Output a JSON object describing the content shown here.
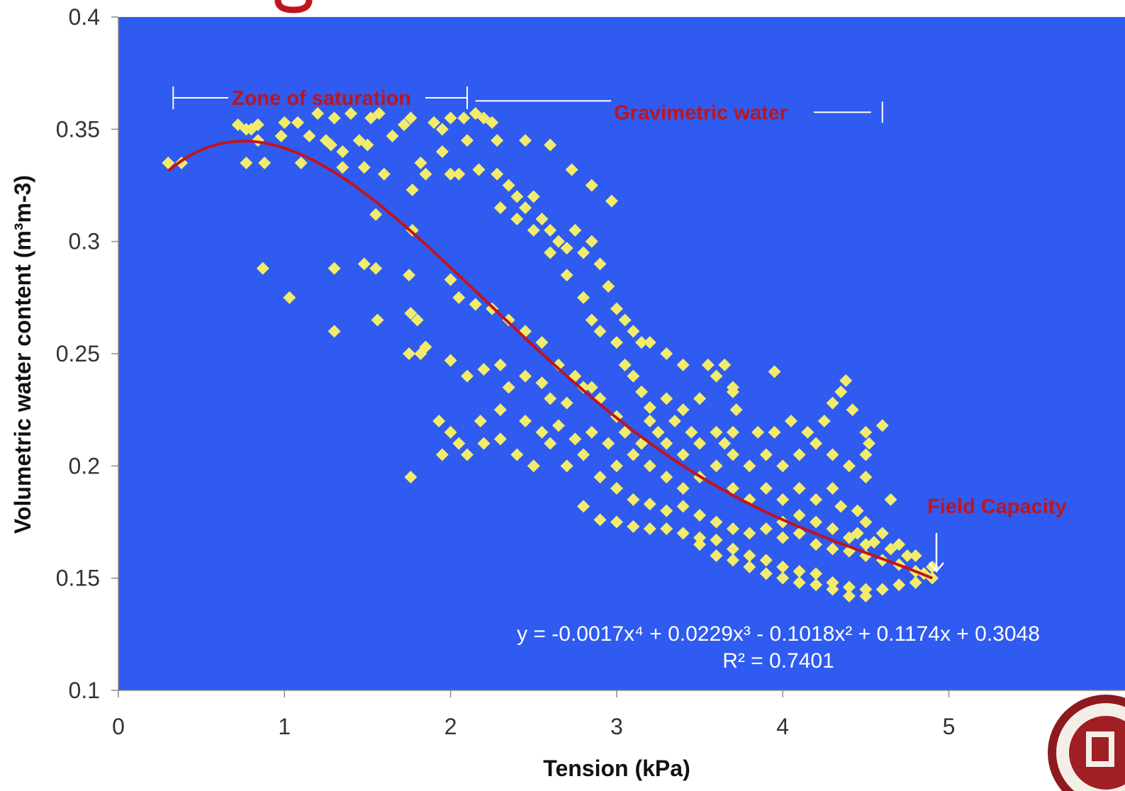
{
  "chart_data": {
    "type": "scatter",
    "title": "",
    "xlabel": "Tension (kPa)",
    "ylabel": "Volumetric water content   (m³m-3)",
    "xlim": [
      0,
      5.7
    ],
    "ylim": [
      0.1,
      0.4
    ],
    "x_ticks": [
      "0",
      "1",
      "2",
      "3",
      "4",
      "5"
    ],
    "y_ticks": [
      "0.1",
      "0.15",
      "0.2",
      "0.25",
      "0.3",
      "0.35",
      "0.4"
    ],
    "grid": false,
    "legend": "none",
    "background_color": "#2f5bf0",
    "marker_color": "#f2ec6a",
    "trendline_color": "#c0141c",
    "series": [
      {
        "marker": "diamond",
        "points": [
          [
            0.3,
            0.335
          ],
          [
            0.38,
            0.335
          ],
          [
            0.72,
            0.352
          ],
          [
            0.77,
            0.35
          ],
          [
            0.8,
            0.35
          ],
          [
            0.84,
            0.352
          ],
          [
            0.84,
            0.345
          ],
          [
            0.77,
            0.335
          ],
          [
            0.88,
            0.335
          ],
          [
            0.98,
            0.347
          ],
          [
            1.0,
            0.353
          ],
          [
            1.08,
            0.353
          ],
          [
            1.15,
            0.347
          ],
          [
            1.2,
            0.357
          ],
          [
            1.25,
            0.345
          ],
          [
            1.28,
            0.343
          ],
          [
            1.3,
            0.355
          ],
          [
            1.35,
            0.34
          ],
          [
            1.4,
            0.357
          ],
          [
            1.45,
            0.345
          ],
          [
            1.5,
            0.343
          ],
          [
            1.52,
            0.355
          ],
          [
            1.57,
            0.357
          ],
          [
            1.6,
            0.33
          ],
          [
            1.65,
            0.347
          ],
          [
            1.72,
            0.352
          ],
          [
            1.76,
            0.355
          ],
          [
            1.9,
            0.353
          ],
          [
            1.95,
            0.35
          ],
          [
            2.0,
            0.355
          ],
          [
            2.08,
            0.355
          ],
          [
            2.15,
            0.357
          ],
          [
            2.2,
            0.355
          ],
          [
            2.25,
            0.353
          ],
          [
            2.1,
            0.345
          ],
          [
            2.05,
            0.33
          ],
          [
            1.95,
            0.34
          ],
          [
            1.82,
            0.335
          ],
          [
            1.85,
            0.33
          ],
          [
            2.0,
            0.33
          ],
          [
            2.17,
            0.332
          ],
          [
            2.28,
            0.345
          ],
          [
            2.45,
            0.345
          ],
          [
            2.6,
            0.343
          ],
          [
            2.73,
            0.332
          ],
          [
            2.85,
            0.325
          ],
          [
            2.97,
            0.318
          ],
          [
            1.1,
            0.335
          ],
          [
            1.35,
            0.333
          ],
          [
            1.48,
            0.333
          ],
          [
            0.87,
            0.288
          ],
          [
            1.03,
            0.275
          ],
          [
            1.3,
            0.288
          ],
          [
            1.3,
            0.26
          ],
          [
            1.48,
            0.29
          ],
          [
            1.55,
            0.288
          ],
          [
            1.56,
            0.265
          ],
          [
            1.75,
            0.285
          ],
          [
            1.76,
            0.268
          ],
          [
            1.8,
            0.265
          ],
          [
            1.75,
            0.25
          ],
          [
            1.82,
            0.25
          ],
          [
            1.85,
            0.253
          ],
          [
            1.77,
            0.323
          ],
          [
            1.77,
            0.305
          ],
          [
            1.55,
            0.312
          ],
          [
            1.76,
            0.195
          ],
          [
            2.28,
            0.33
          ],
          [
            2.35,
            0.325
          ],
          [
            2.4,
            0.32
          ],
          [
            2.45,
            0.315
          ],
          [
            2.5,
            0.32
          ],
          [
            2.55,
            0.31
          ],
          [
            2.6,
            0.305
          ],
          [
            2.65,
            0.3
          ],
          [
            2.7,
            0.297
          ],
          [
            2.75,
            0.305
          ],
          [
            2.8,
            0.295
          ],
          [
            2.85,
            0.3
          ],
          [
            2.9,
            0.29
          ],
          [
            2.95,
            0.28
          ],
          [
            3.0,
            0.27
          ],
          [
            3.05,
            0.265
          ],
          [
            3.1,
            0.26
          ],
          [
            3.15,
            0.255
          ],
          [
            3.2,
            0.255
          ],
          [
            3.3,
            0.25
          ],
          [
            3.4,
            0.245
          ],
          [
            3.55,
            0.245
          ],
          [
            3.6,
            0.24
          ],
          [
            3.7,
            0.233
          ],
          [
            2.3,
            0.315
          ],
          [
            2.4,
            0.31
          ],
          [
            2.5,
            0.305
          ],
          [
            2.6,
            0.295
          ],
          [
            2.7,
            0.285
          ],
          [
            2.8,
            0.275
          ],
          [
            2.85,
            0.265
          ],
          [
            2.9,
            0.26
          ],
          [
            3.0,
            0.255
          ],
          [
            3.05,
            0.245
          ],
          [
            3.1,
            0.24
          ],
          [
            3.15,
            0.233
          ],
          [
            3.2,
            0.226
          ],
          [
            2.0,
            0.283
          ],
          [
            2.05,
            0.275
          ],
          [
            2.15,
            0.272
          ],
          [
            2.25,
            0.27
          ],
          [
            2.35,
            0.265
          ],
          [
            2.45,
            0.26
          ],
          [
            2.55,
            0.255
          ],
          [
            2.65,
            0.245
          ],
          [
            2.75,
            0.24
          ],
          [
            2.85,
            0.235
          ],
          [
            2.0,
            0.247
          ],
          [
            2.1,
            0.24
          ],
          [
            2.2,
            0.243
          ],
          [
            2.3,
            0.245
          ],
          [
            2.35,
            0.235
          ],
          [
            2.45,
            0.24
          ],
          [
            2.55,
            0.237
          ],
          [
            2.6,
            0.23
          ],
          [
            2.7,
            0.228
          ],
          [
            2.8,
            0.235
          ],
          [
            2.9,
            0.23
          ],
          [
            3.0,
            0.222
          ],
          [
            3.05,
            0.215
          ],
          [
            1.93,
            0.22
          ],
          [
            2.0,
            0.215
          ],
          [
            2.05,
            0.21
          ],
          [
            1.95,
            0.205
          ],
          [
            2.1,
            0.205
          ],
          [
            2.2,
            0.21
          ],
          [
            2.3,
            0.212
          ],
          [
            2.4,
            0.205
          ],
          [
            2.5,
            0.2
          ],
          [
            2.6,
            0.21
          ],
          [
            2.7,
            0.2
          ],
          [
            2.8,
            0.205
          ],
          [
            2.9,
            0.195
          ],
          [
            2.18,
            0.22
          ],
          [
            2.3,
            0.225
          ],
          [
            2.45,
            0.22
          ],
          [
            2.55,
            0.215
          ],
          [
            2.65,
            0.218
          ],
          [
            2.75,
            0.212
          ],
          [
            2.85,
            0.215
          ],
          [
            2.95,
            0.21
          ],
          [
            3.0,
            0.2
          ],
          [
            3.1,
            0.205
          ],
          [
            3.2,
            0.2
          ],
          [
            3.3,
            0.195
          ],
          [
            3.4,
            0.19
          ],
          [
            3.5,
            0.195
          ],
          [
            3.6,
            0.2
          ],
          [
            3.7,
            0.19
          ],
          [
            3.8,
            0.185
          ],
          [
            3.9,
            0.19
          ],
          [
            4.0,
            0.185
          ],
          [
            4.1,
            0.19
          ],
          [
            4.2,
            0.185
          ],
          [
            4.3,
            0.19
          ],
          [
            4.35,
            0.182
          ],
          [
            4.45,
            0.18
          ],
          [
            4.5,
            0.175
          ],
          [
            3.0,
            0.19
          ],
          [
            3.1,
            0.185
          ],
          [
            3.2,
            0.183
          ],
          [
            3.3,
            0.18
          ],
          [
            3.4,
            0.182
          ],
          [
            3.5,
            0.178
          ],
          [
            3.6,
            0.175
          ],
          [
            3.7,
            0.172
          ],
          [
            3.8,
            0.17
          ],
          [
            3.9,
            0.172
          ],
          [
            4.0,
            0.168
          ],
          [
            4.1,
            0.17
          ],
          [
            4.2,
            0.165
          ],
          [
            4.3,
            0.163
          ],
          [
            4.4,
            0.162
          ],
          [
            4.5,
            0.16
          ],
          [
            4.6,
            0.158
          ],
          [
            4.7,
            0.156
          ],
          [
            4.8,
            0.153
          ],
          [
            4.9,
            0.15
          ],
          [
            3.5,
            0.21
          ],
          [
            3.6,
            0.215
          ],
          [
            3.7,
            0.205
          ],
          [
            3.8,
            0.2
          ],
          [
            3.9,
            0.205
          ],
          [
            4.0,
            0.2
          ],
          [
            4.1,
            0.205
          ],
          [
            4.2,
            0.21
          ],
          [
            4.3,
            0.205
          ],
          [
            4.4,
            0.2
          ],
          [
            4.5,
            0.195
          ],
          [
            4.25,
            0.22
          ],
          [
            4.15,
            0.215
          ],
          [
            4.05,
            0.22
          ],
          [
            3.95,
            0.215
          ],
          [
            3.85,
            0.215
          ],
          [
            4.5,
            0.215
          ],
          [
            4.5,
            0.205
          ],
          [
            2.8,
            0.182
          ],
          [
            2.9,
            0.176
          ],
          [
            3.0,
            0.175
          ],
          [
            3.1,
            0.173
          ],
          [
            3.2,
            0.172
          ],
          [
            3.3,
            0.172
          ],
          [
            3.4,
            0.17
          ],
          [
            3.5,
            0.168
          ],
          [
            3.6,
            0.167
          ],
          [
            3.7,
            0.163
          ],
          [
            3.8,
            0.16
          ],
          [
            3.9,
            0.158
          ],
          [
            4.0,
            0.155
          ],
          [
            4.1,
            0.153
          ],
          [
            4.2,
            0.152
          ],
          [
            4.3,
            0.148
          ],
          [
            4.4,
            0.146
          ],
          [
            4.5,
            0.145
          ],
          [
            4.6,
            0.145
          ],
          [
            4.7,
            0.147
          ],
          [
            4.8,
            0.148
          ],
          [
            4.85,
            0.152
          ],
          [
            4.75,
            0.16
          ],
          [
            4.65,
            0.163
          ],
          [
            4.55,
            0.166
          ],
          [
            4.45,
            0.17
          ],
          [
            3.5,
            0.165
          ],
          [
            3.6,
            0.16
          ],
          [
            3.7,
            0.158
          ],
          [
            3.8,
            0.155
          ],
          [
            3.9,
            0.152
          ],
          [
            4.0,
            0.15
          ],
          [
            4.1,
            0.148
          ],
          [
            4.2,
            0.147
          ],
          [
            4.3,
            0.145
          ],
          [
            4.4,
            0.142
          ],
          [
            4.5,
            0.142
          ],
          [
            3.65,
            0.245
          ],
          [
            3.7,
            0.235
          ],
          [
            3.72,
            0.225
          ],
          [
            3.7,
            0.215
          ],
          [
            3.65,
            0.21
          ],
          [
            3.95,
            0.242
          ],
          [
            4.35,
            0.233
          ],
          [
            4.38,
            0.238
          ],
          [
            4.3,
            0.228
          ],
          [
            4.42,
            0.225
          ],
          [
            4.6,
            0.218
          ],
          [
            4.52,
            0.21
          ],
          [
            4.65,
            0.185
          ],
          [
            3.3,
            0.21
          ],
          [
            3.4,
            0.205
          ],
          [
            3.45,
            0.215
          ],
          [
            3.35,
            0.22
          ],
          [
            3.25,
            0.215
          ],
          [
            3.15,
            0.21
          ],
          [
            3.2,
            0.22
          ],
          [
            3.3,
            0.23
          ],
          [
            3.4,
            0.225
          ],
          [
            3.5,
            0.23
          ],
          [
            4.0,
            0.175
          ],
          [
            4.1,
            0.178
          ],
          [
            4.2,
            0.175
          ],
          [
            4.3,
            0.172
          ],
          [
            4.4,
            0.168
          ],
          [
            4.5,
            0.165
          ],
          [
            4.6,
            0.17
          ],
          [
            4.7,
            0.165
          ],
          [
            4.8,
            0.16
          ],
          [
            4.9,
            0.155
          ]
        ]
      }
    ],
    "trendline": {
      "type": "polynomial",
      "coefficients": [
        -0.0017,
        0.0229,
        -0.1018,
        0.1174,
        0.3048
      ],
      "x_range": [
        0.3,
        4.9
      ],
      "equation_label": "y = -0.0017x⁴ + 0.0229x³ - 0.1018x² + 0.1174x + 0.3048",
      "r2_label": "R² = 0.7401"
    },
    "annotations": [
      {
        "text": "Zone of saturation",
        "color": "#c0141c",
        "bracket": [
          0.33,
          2.1
        ],
        "y": 0.364
      },
      {
        "text": "Gravimetric water",
        "color": "#c0141c",
        "bracket": [
          2.15,
          4.6
        ],
        "y": 0.362
      },
      {
        "text": "Field Capacity",
        "color": "#c0141c",
        "at_x": 4.93,
        "at_y": 0.153
      }
    ]
  }
}
